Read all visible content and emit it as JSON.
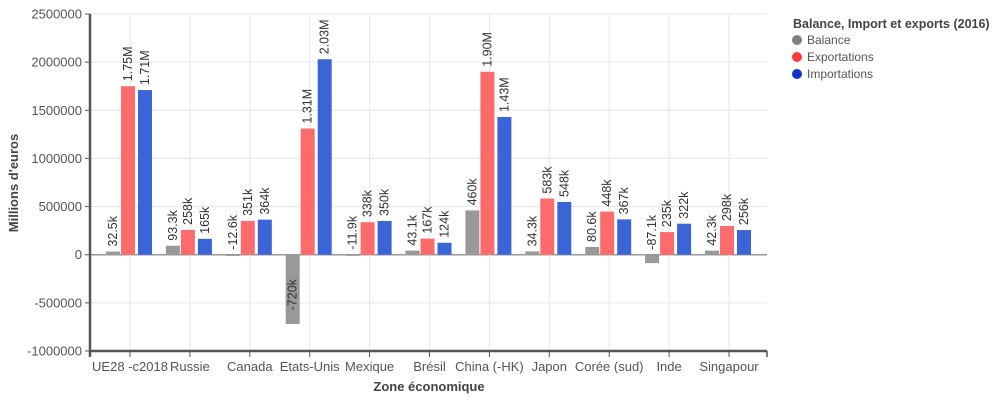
{
  "chart_data": {
    "type": "bar",
    "title": "",
    "xlabel": "Zone économique",
    "ylabel": "Millions d'euros",
    "ylim": [
      -1000000,
      2500000
    ],
    "yticks": [
      2500000,
      2000000,
      1500000,
      1000000,
      500000,
      0,
      -500000,
      -1000000
    ],
    "ytick_labels": [
      "2500000",
      "2000000",
      "1500000",
      "1000000",
      "500000",
      "0",
      "-500000",
      "-1000000"
    ],
    "grid": true,
    "legend": {
      "title": "Balance, Import et exports (2016)",
      "placement": "right"
    },
    "categories": [
      "UE28 -c2018",
      "Russie",
      "Canada",
      "Etats-Unis",
      "Mexique",
      "Brésil",
      "China (-HK)",
      "Japon",
      "Corée (sud)",
      "Inde",
      "Singapour"
    ],
    "series": [
      {
        "name": "Balance",
        "color": "#999999",
        "legend_color": "#808080",
        "values": [
          32500,
          93300,
          -12600,
          -720000,
          -11900,
          43100,
          460000,
          34300,
          80600,
          -87100,
          42300
        ],
        "labels": [
          "32.5k",
          "93.3k",
          "-12.6k",
          "-720k",
          "-11.9k",
          "43.1k",
          "460k",
          "34.3k",
          "80.6k",
          "-87.1k",
          "42.3k"
        ]
      },
      {
        "name": "Exportations",
        "color": "#ff6b6b",
        "legend_color": "#ff3b3b",
        "values": [
          1750000,
          258000,
          351000,
          1310000,
          338000,
          167000,
          1900000,
          583000,
          448000,
          235000,
          298000
        ],
        "labels": [
          "1.75M",
          "258k",
          "351k",
          "1.31M",
          "338k",
          "167k",
          "1.90M",
          "583k",
          "448k",
          "235k",
          "298k"
        ]
      },
      {
        "name": "Importations",
        "color": "#3b64d6",
        "legend_color": "#1034c8",
        "values": [
          1710000,
          165000,
          364000,
          2030000,
          350000,
          124000,
          1430000,
          548000,
          367000,
          322000,
          256000
        ],
        "labels": [
          "1.71M",
          "165k",
          "364k",
          "2.03M",
          "350k",
          "124k",
          "1.43M",
          "548k",
          "367k",
          "322k",
          "256k"
        ]
      }
    ]
  }
}
